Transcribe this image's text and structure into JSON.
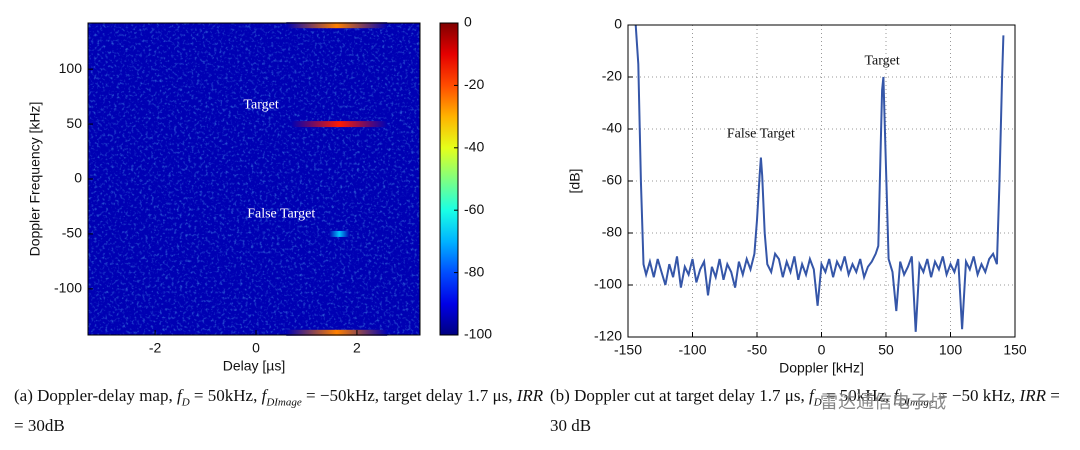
{
  "chart_data": [
    {
      "type": "heatmap",
      "xlabel": "Delay [µs]",
      "ylabel": "Doppler Frequency [kHz]",
      "xlim": [
        -3.33,
        3.25
      ],
      "xticks": [
        -2,
        0,
        2
      ],
      "ylim": [
        -142,
        142
      ],
      "yticks": [
        -100,
        -50,
        0,
        50,
        100
      ],
      "clim": [
        -100,
        0
      ],
      "cticks": [
        0,
        -20,
        -40,
        -60,
        -80,
        -100
      ],
      "colormap": "jet",
      "background": -95,
      "streaks": [
        {
          "doppler": 50,
          "delay": [
            0.7,
            2.6
          ],
          "peak": -15
        },
        {
          "doppler": -50,
          "delay": [
            1.45,
            1.85
          ],
          "peak": -68
        },
        {
          "doppler": 140,
          "delay": [
            0.6,
            2.6
          ],
          "peak": -25
        },
        {
          "doppler": -140,
          "delay": [
            0.6,
            2.6
          ],
          "peak": -25
        }
      ],
      "annotations": [
        {
          "text": "Target",
          "x": 0.1,
          "y": 67
        },
        {
          "text": "False Target",
          "x": 0.5,
          "y": -32
        }
      ]
    },
    {
      "type": "line",
      "xlabel": "Doppler [kHz]",
      "ylabel": "[dB]",
      "xlim": [
        -150,
        150
      ],
      "xticks": [
        -150,
        -100,
        -50,
        0,
        50,
        100,
        150
      ],
      "ylim": [
        -120,
        0
      ],
      "yticks": [
        -120,
        -100,
        -80,
        -60,
        -40,
        -20,
        0
      ],
      "grid": true,
      "series": [
        {
          "name": "Doppler cut",
          "color": "#3556a8",
          "x": [
            -144,
            -142,
            -140,
            -138,
            -136,
            -133,
            -130,
            -127,
            -124,
            -121,
            -118,
            -115,
            -112,
            -109,
            -106,
            -103,
            -100,
            -97,
            -94,
            -91,
            -88,
            -85,
            -82,
            -79,
            -76,
            -73,
            -70,
            -67,
            -64,
            -61,
            -58,
            -55,
            -52,
            -50,
            -48,
            -47,
            -46,
            -44,
            -42,
            -39,
            -36,
            -33,
            -30,
            -27,
            -24,
            -21,
            -18,
            -15,
            -12,
            -9,
            -6,
            -3,
            0,
            3,
            6,
            9,
            12,
            15,
            18,
            21,
            24,
            27,
            30,
            33,
            36,
            39,
            42,
            44,
            46,
            47,
            48,
            50,
            52,
            55,
            58,
            61,
            64,
            67,
            70,
            73,
            76,
            79,
            82,
            85,
            88,
            91,
            94,
            97,
            100,
            103,
            106,
            109,
            112,
            115,
            118,
            121,
            124,
            127,
            130,
            133,
            136,
            138,
            140,
            141
          ],
          "values": [
            0,
            -15,
            -60,
            -92,
            -96,
            -91,
            -97,
            -90,
            -95,
            -100,
            -92,
            -97,
            -89,
            -101,
            -93,
            -96,
            -90,
            -99,
            -94,
            -91,
            -104,
            -93,
            -97,
            -90,
            -98,
            -92,
            -95,
            -101,
            -91,
            -96,
            -90,
            -94,
            -88,
            -75,
            -58,
            -51,
            -58,
            -80,
            -92,
            -95,
            -88,
            -90,
            -97,
            -91,
            -95,
            -89,
            -98,
            -92,
            -96,
            -90,
            -94,
            -108,
            -92,
            -95,
            -90,
            -97,
            -91,
            -94,
            -89,
            -96,
            -92,
            -95,
            -90,
            -97,
            -93,
            -91,
            -88,
            -85,
            -45,
            -25,
            -20,
            -55,
            -90,
            -95,
            -110,
            -91,
            -96,
            -93,
            -89,
            -118,
            -92,
            -95,
            -90,
            -97,
            -91,
            -94,
            -89,
            -96,
            -92,
            -95,
            -90,
            -117,
            -91,
            -94,
            -89,
            -96,
            -92,
            -95,
            -90,
            -88,
            -92,
            -60,
            -20,
            -4
          ]
        }
      ],
      "annotations": [
        {
          "text": "False Target",
          "x": -47,
          "y": -42
        },
        {
          "text": "Target",
          "x": 47,
          "y": -14
        }
      ]
    }
  ],
  "captions": [
    [
      {
        "text": "(a) Doppler-delay map, ",
        "style": "n"
      },
      {
        "text": "f",
        "style": "i"
      },
      {
        "text": "D",
        "style": "sub"
      },
      {
        "text": " = 50kHz, ",
        "style": "n"
      },
      {
        "text": "f",
        "style": "i"
      },
      {
        "text": "DImage",
        "style": "sub"
      },
      {
        "text": " = −50kHz, target delay 1.7 μs, ",
        "style": "n"
      },
      {
        "text": "IRR",
        "style": "i"
      },
      {
        "text": " = 30dB",
        "style": "n"
      }
    ],
    [
      {
        "text": "(b) Doppler cut at target delay 1.7 μs, ",
        "style": "n"
      },
      {
        "text": "f",
        "style": "i"
      },
      {
        "text": "D",
        "style": "sub"
      },
      {
        "text": " = 50kHz, ",
        "style": "n"
      },
      {
        "text": "f",
        "style": "i"
      },
      {
        "text": "DImage",
        "style": "sub"
      },
      {
        "text": " = −50 kHz, ",
        "style": "n"
      },
      {
        "text": "IRR",
        "style": "i"
      },
      {
        "text": " = 30 dB",
        "style": "n"
      }
    ]
  ],
  "watermark": "雷达通信电子战"
}
